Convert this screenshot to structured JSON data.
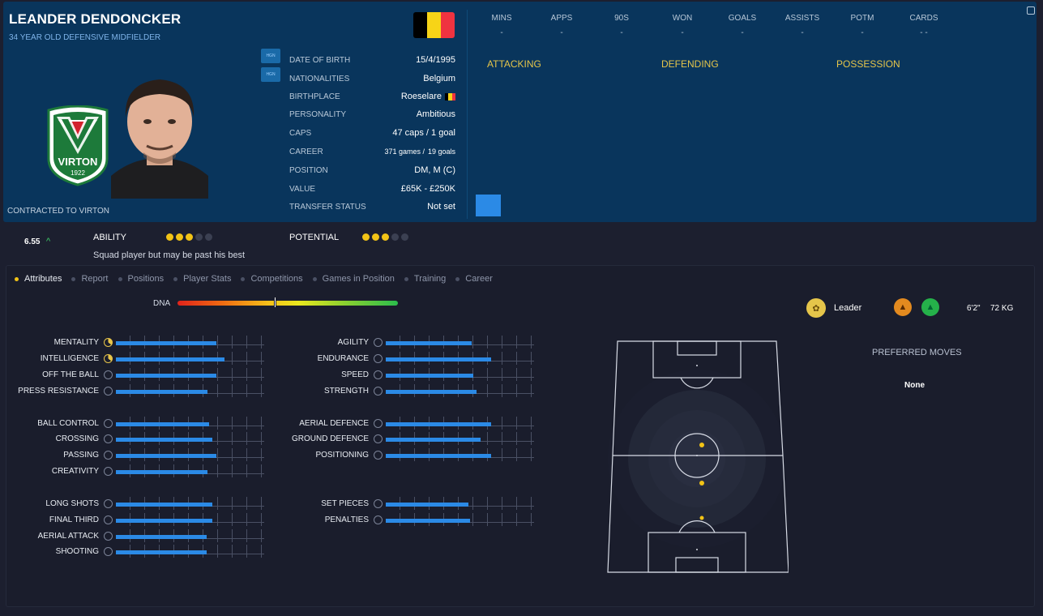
{
  "player": {
    "name": "LEANDER DENDONCKER",
    "subtitle": "34 YEAR OLD DEFENSIVE MIDFIELDER",
    "contracted": "CONTRACTED TO VIRTON",
    "club_badge_text": "VIRTON",
    "club_badge_year": "1922",
    "flag_colors": [
      "#000000",
      "#f7d417",
      "#ef3340"
    ]
  },
  "mini_buttons": [
    "HGN",
    "HGN"
  ],
  "info": [
    {
      "label": "DATE OF BIRTH",
      "value": "15/4/1995"
    },
    {
      "label": "NATIONALITIES",
      "value": "Belgium"
    },
    {
      "label": "BIRTHPLACE",
      "value": "Roeselare"
    },
    {
      "label": "PERSONALITY",
      "value": "Ambitious"
    },
    {
      "label": "CAPS",
      "value": "47 caps / 1 goal"
    },
    {
      "label": "CAREER",
      "value_games": "371 games /",
      "value_goals": "19 goals"
    },
    {
      "label": "POSITION",
      "value": "DM, M (C)"
    },
    {
      "label": "VALUE",
      "value": "£65K - £250K"
    },
    {
      "label": "TRANSFER STATUS",
      "value": "Not set"
    }
  ],
  "stats": {
    "headers": [
      "MINS",
      "APPS",
      "90S",
      "WON",
      "GOALS",
      "ASSISTS",
      "POTM",
      "CARDS"
    ],
    "values": [
      "-",
      "-",
      "-",
      "-",
      "-",
      "-",
      "-",
      "- -"
    ]
  },
  "sections": [
    "ATTACKING",
    "DEFENDING",
    "POSSESSION"
  ],
  "ability": {
    "rating": "6.55",
    "ability_label": "ABILITY",
    "ability_stars": 3,
    "potential_label": "POTENTIAL",
    "potential_stars": 3,
    "max_stars": 5,
    "description": "Squad player but may be past his best"
  },
  "tabs": [
    "Attributes",
    "Report",
    "Positions",
    "Player Stats",
    "Competitions",
    "Games in Position",
    "Training",
    "Career"
  ],
  "dna": {
    "label": "DNA",
    "value": 0.44
  },
  "attributes_left": [
    {
      "label": "MENTALITY",
      "value": 0.68,
      "icon": "yellow"
    },
    {
      "label": "INTELLIGENCE",
      "value": 0.73,
      "icon": "yellow"
    },
    {
      "label": "OFF THE BALL",
      "value": 0.68
    },
    {
      "label": "PRESS RESISTANCE",
      "value": 0.62
    },
    {
      "label": "BALL CONTROL",
      "value": 0.63
    },
    {
      "label": "CROSSING",
      "value": 0.65
    },
    {
      "label": "PASSING",
      "value": 0.68
    },
    {
      "label": "CREATIVITY",
      "value": 0.62
    },
    {
      "label": "LONG SHOTS",
      "value": 0.65
    },
    {
      "label": "FINAL THIRD",
      "value": 0.65
    },
    {
      "label": "AERIAL ATTACK",
      "value": 0.61
    },
    {
      "label": "SHOOTING",
      "value": 0.61
    }
  ],
  "attributes_right": [
    {
      "label": "AGILITY",
      "value": 0.58
    },
    {
      "label": "ENDURANCE",
      "value": 0.71
    },
    {
      "label": "SPEED",
      "value": 0.59
    },
    {
      "label": "STRENGTH",
      "value": 0.61
    },
    {
      "label": "AERIAL DEFENCE",
      "value": 0.71
    },
    {
      "label": "GROUND DEFENCE",
      "value": 0.64
    },
    {
      "label": "POSITIONING",
      "value": 0.71
    },
    {
      "label": "SET PIECES",
      "value": 0.56
    },
    {
      "label": "PENALTIES",
      "value": 0.57
    }
  ],
  "traits": {
    "leader_label": "Leader",
    "height": "6'2\"",
    "weight": "72 KG",
    "colors": {
      "leader": "#e5c54a",
      "foot_left": "#e38a1f",
      "foot_right": "#25b14a"
    }
  },
  "preferred_moves": {
    "title": "PREFERRED MOVES",
    "value": "None"
  }
}
